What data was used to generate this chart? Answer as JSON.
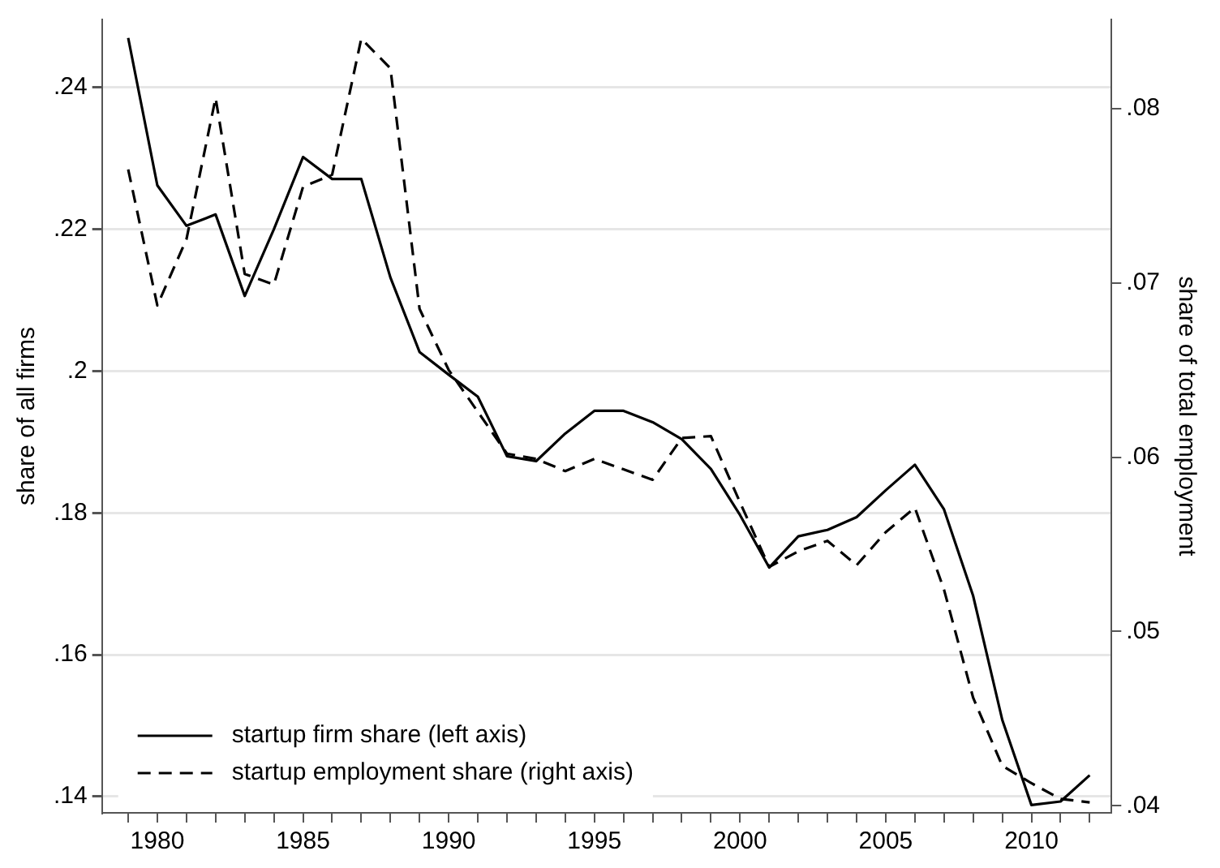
{
  "chart_data": {
    "type": "line",
    "ylabel": "share of all firms",
    "y2label": "share of total employment",
    "x": [
      1979,
      1980,
      1981,
      1982,
      1983,
      1984,
      1985,
      1986,
      1987,
      1988,
      1989,
      1990,
      1991,
      1992,
      1993,
      1994,
      1995,
      1996,
      1997,
      1998,
      1999,
      2000,
      2001,
      2002,
      2003,
      2004,
      2005,
      2006,
      2007,
      2008,
      2009,
      2010,
      2011,
      2012
    ],
    "series": [
      {
        "name": "startup firm share (left axis)",
        "color": "#000000",
        "line_style": "solid",
        "values": [
          0.247,
          0.2262,
          0.2205,
          0.2221,
          0.2106,
          0.22,
          0.2302,
          0.2271,
          0.2271,
          0.2132,
          0.2027,
          0.1995,
          0.1964,
          0.188,
          0.1873,
          0.1912,
          0.1944,
          0.1944,
          0.1928,
          0.1904,
          0.1862,
          0.1797,
          0.1723,
          0.1767,
          0.1776,
          0.1794,
          0.1832,
          0.1868,
          0.1805,
          0.1683,
          0.1508,
          0.1388,
          0.1393,
          0.143
        ]
      },
      {
        "name": "startup employment share (right axis)",
        "color": "#000000",
        "line_style": "dashed",
        "axis": "y2",
        "values": [
          0.0765,
          0.0687,
          0.0725,
          0.0806,
          0.0705,
          0.0699,
          0.0755,
          0.0762,
          0.084,
          0.0823,
          0.0685,
          0.065,
          0.0626,
          0.0602,
          0.0599,
          0.0592,
          0.0599,
          0.0593,
          0.0587,
          0.0611,
          0.0612,
          0.0574,
          0.0537,
          0.0546,
          0.0552,
          0.0538,
          0.0557,
          0.0571,
          0.0524,
          0.0462,
          0.0423,
          0.0413,
          0.0404,
          0.0402
        ]
      }
    ],
    "xlim": [
      1978.1,
      2012.75
    ],
    "xticks": [
      {
        "value": 1979,
        "label": null
      },
      1980,
      {
        "value": 1981,
        "label": null
      },
      {
        "value": 1982,
        "label": null
      },
      {
        "value": 1983,
        "label": null
      },
      {
        "value": 1984,
        "label": null
      },
      1985,
      {
        "value": 1986,
        "label": null
      },
      {
        "value": 1987,
        "label": null
      },
      {
        "value": 1988,
        "label": null
      },
      {
        "value": 1989,
        "label": null
      },
      1990,
      {
        "value": 1991,
        "label": null
      },
      {
        "value": 1992,
        "label": null
      },
      {
        "value": 1993,
        "label": null
      },
      {
        "value": 1994,
        "label": null
      },
      1995,
      {
        "value": 1996,
        "label": null
      },
      {
        "value": 1997,
        "label": null
      },
      {
        "value": 1998,
        "label": null
      },
      {
        "value": 1999,
        "label": null
      },
      2000,
      {
        "value": 2001,
        "label": null
      },
      {
        "value": 2002,
        "label": null
      },
      {
        "value": 2003,
        "label": null
      },
      {
        "value": 2004,
        "label": null
      },
      2005,
      {
        "value": 2006,
        "label": null
      },
      {
        "value": 2007,
        "label": null
      },
      {
        "value": 2008,
        "label": null
      },
      {
        "value": 2009,
        "label": null
      },
      2010,
      {
        "value": 2011,
        "label": null
      },
      {
        "value": 2012,
        "label": null
      }
    ],
    "ylim": [
      0.1377,
      0.2496
    ],
    "yticks": [
      {
        "value": 0.14,
        "label": ".14"
      },
      {
        "value": 0.16,
        "label": ".16"
      },
      {
        "value": 0.18,
        "label": ".18"
      },
      {
        "value": 0.2,
        "label": ".2"
      },
      {
        "value": 0.22,
        "label": ".22"
      },
      {
        "value": 0.24,
        "label": ".24"
      }
    ],
    "y2lim": [
      0.0396,
      0.0851
    ],
    "y2ticks": [
      {
        "value": 0.04,
        "label": ".04"
      },
      {
        "value": 0.05,
        "label": ".05"
      },
      {
        "value": 0.06,
        "label": ".06"
      },
      {
        "value": 0.07,
        "label": ".07"
      },
      {
        "value": 0.08,
        "label": ".08"
      }
    ],
    "grid": "y",
    "legend": "bottom left",
    "marker": "none"
  }
}
